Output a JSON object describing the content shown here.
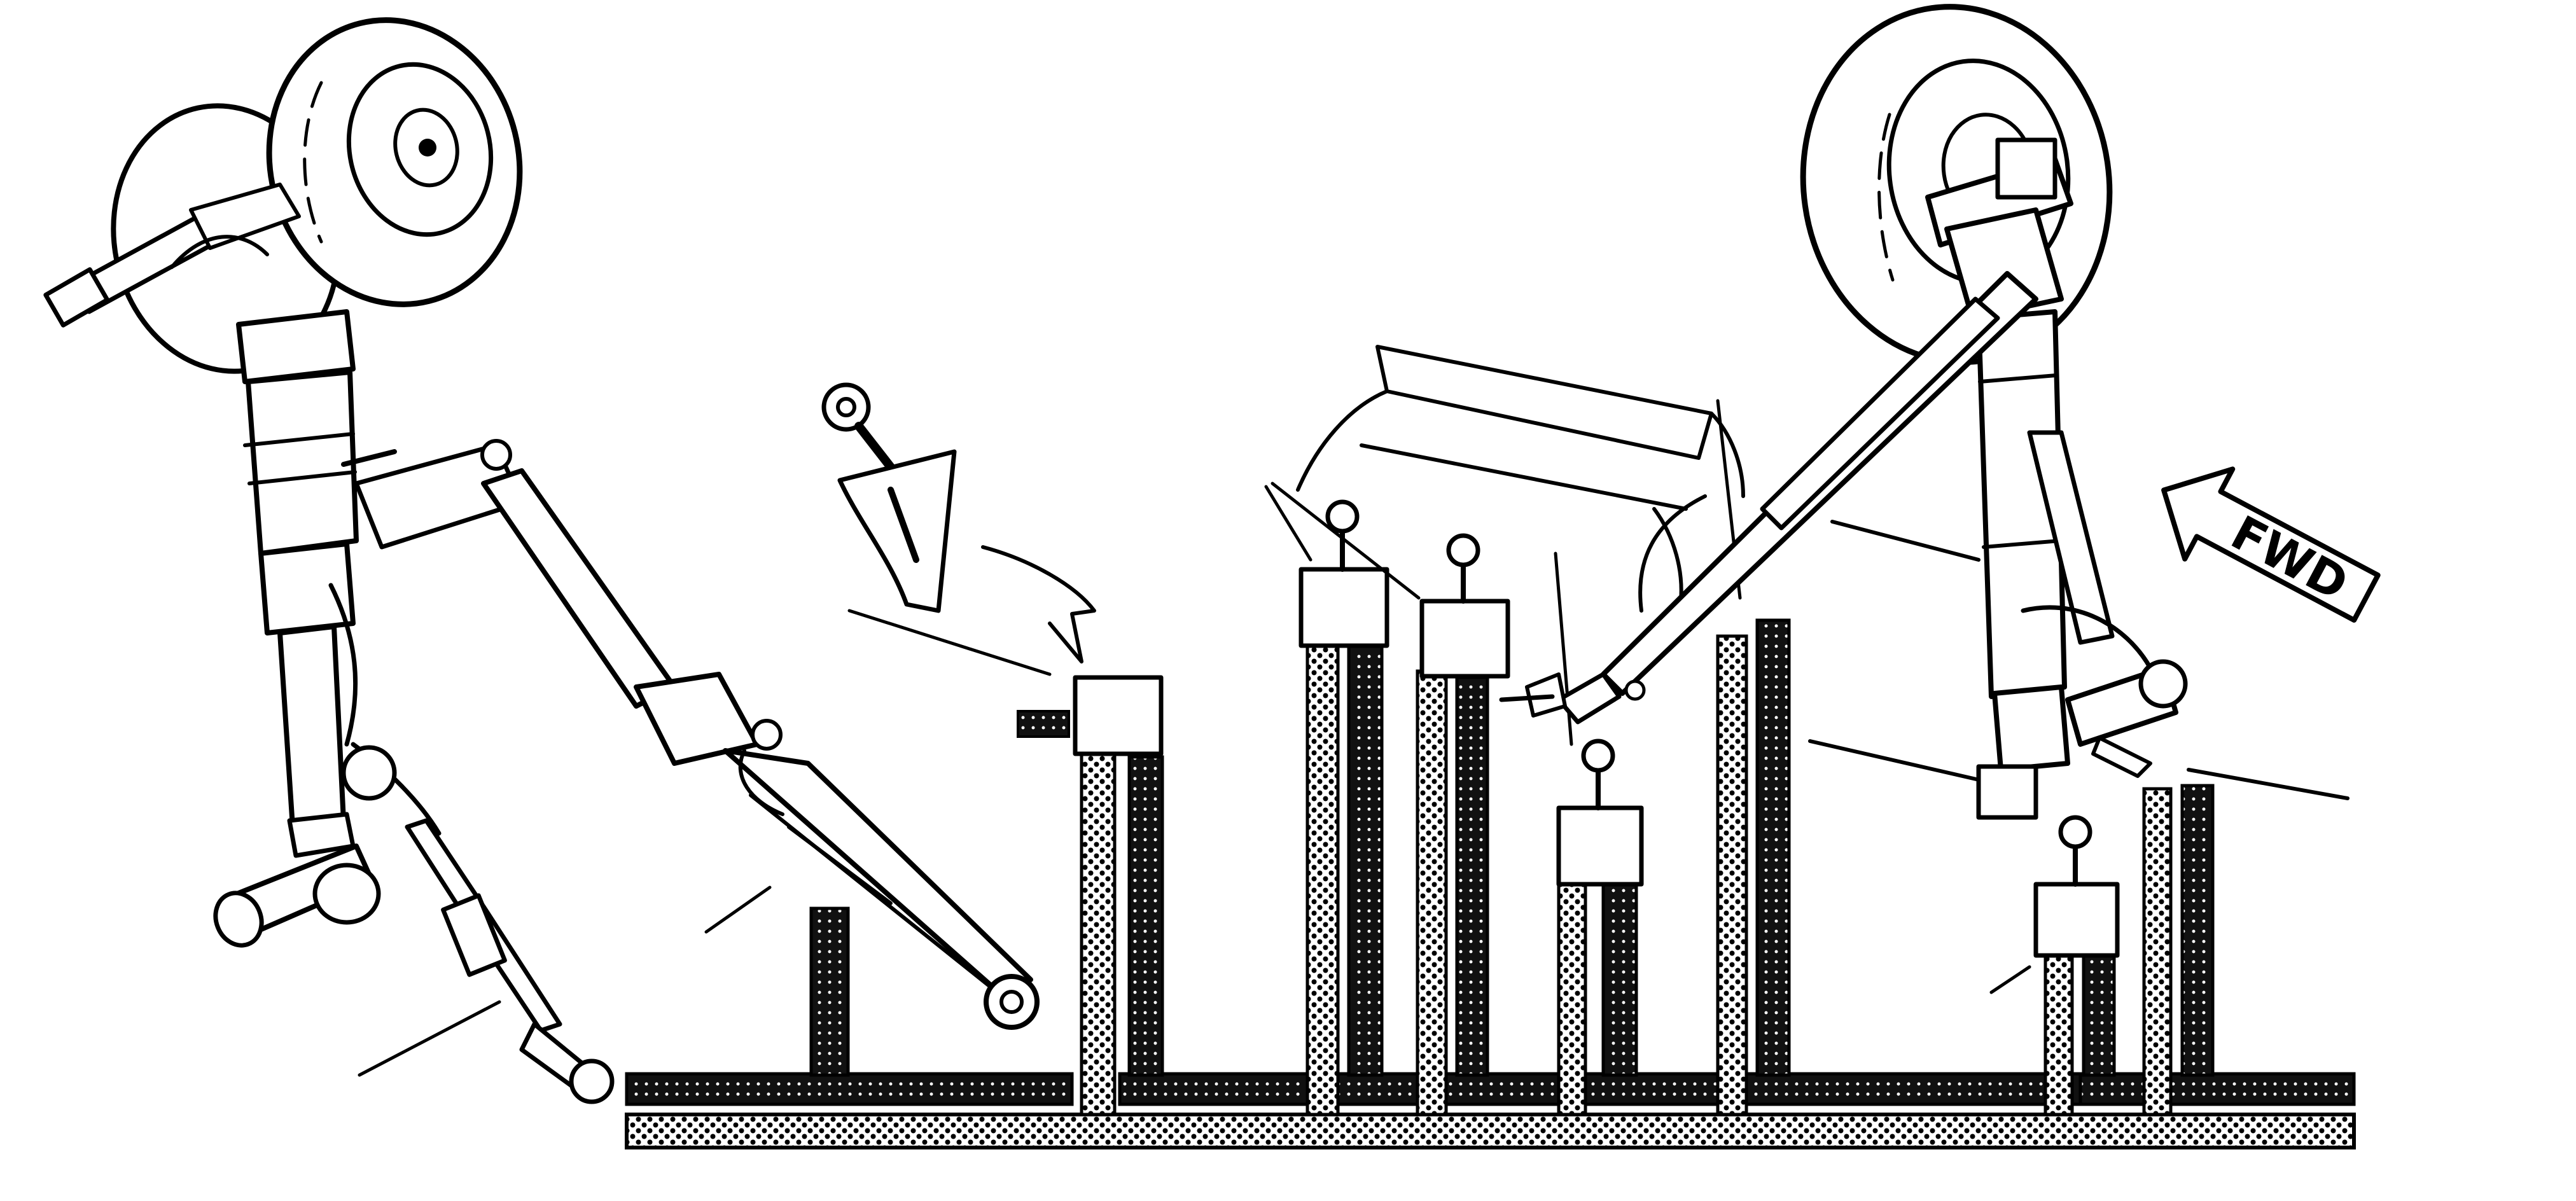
{
  "diagram": {
    "forward_arrow_label": "FWD",
    "colors": {
      "ink": "#000000",
      "background": "#ffffff"
    },
    "icons": [
      "main-landing-gear-icon",
      "nose-landing-gear-icon",
      "tow-fitting-icon",
      "forward-arrow-icon"
    ]
  }
}
